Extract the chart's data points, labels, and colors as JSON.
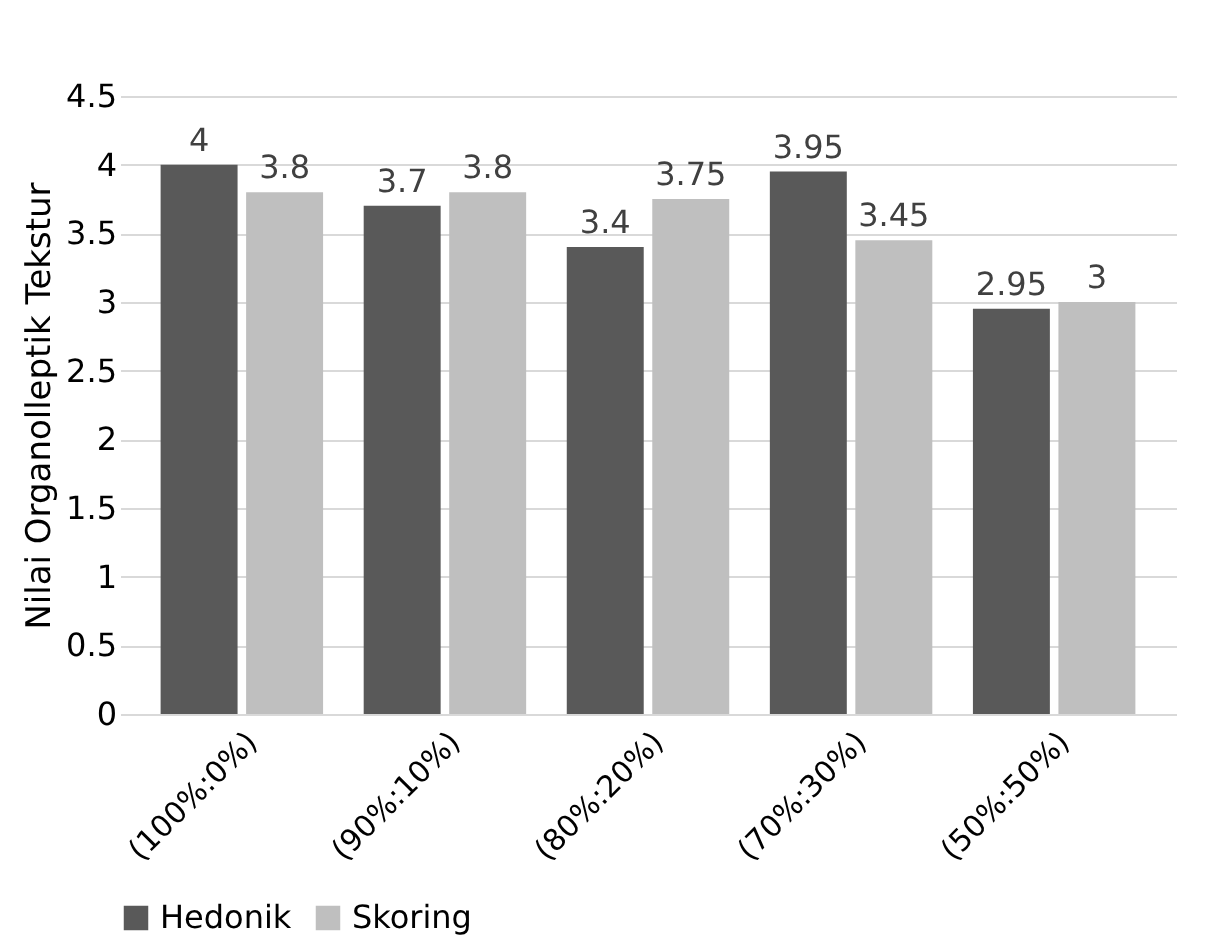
{
  "chart_data": {
    "type": "bar",
    "ylabel": "Nilai Organolleptik Tekstur",
    "categories": [
      "(100%:0%)",
      "(90%:10%)",
      "(80%:20%)",
      "(70%:30%)",
      "(50%:50%)"
    ],
    "series": [
      {
        "name": "Hedonik",
        "color": "#595959",
        "values": [
          4,
          3.7,
          3.4,
          3.95,
          2.95
        ]
      },
      {
        "name": "Skoring",
        "color": "#bfbfbf",
        "values": [
          3.8,
          3.8,
          3.75,
          3.45,
          3
        ]
      }
    ],
    "ylim": [
      0,
      4.5
    ],
    "yticks": [
      0,
      0.5,
      1,
      1.5,
      2,
      2.5,
      3,
      3.5,
      4,
      4.5
    ],
    "grid": "y",
    "legend": "bottom",
    "data_labels": true
  }
}
